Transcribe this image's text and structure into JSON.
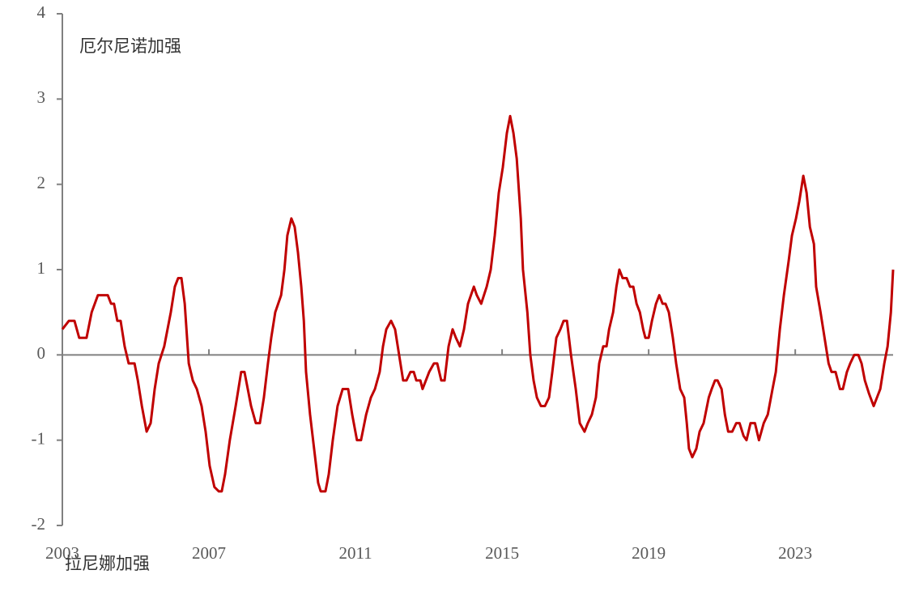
{
  "chart_data": {
    "type": "line",
    "annotations": [
      "厄尔尼诺加强",
      "拉尼娜加强"
    ],
    "color": "#c00000",
    "xlim": [
      2003,
      2025.67
    ],
    "xticks": [
      2003,
      2007,
      2011,
      2015,
      2019,
      2023
    ],
    "ylim": [
      -2,
      4
    ],
    "yticks": [
      -2,
      -1,
      0,
      1,
      2,
      3,
      4
    ],
    "x": [
      2003.0,
      2003.18,
      2003.33,
      2003.46,
      2003.66,
      2003.8,
      2003.97,
      2004.24,
      2004.33,
      2004.41,
      2004.5,
      2004.59,
      2004.7,
      2004.81,
      2004.97,
      2005.06,
      2005.17,
      2005.3,
      2005.41,
      2005.52,
      2005.63,
      2005.78,
      2005.96,
      2006.07,
      2006.16,
      2006.25,
      2006.34,
      2006.45,
      2006.56,
      2006.67,
      2006.8,
      2006.91,
      2007.02,
      2007.15,
      2007.27,
      2007.35,
      2007.44,
      2007.57,
      2007.73,
      2007.88,
      2007.97,
      2008.15,
      2008.28,
      2008.39,
      2008.5,
      2008.61,
      2008.7,
      2008.81,
      2008.97,
      2009.06,
      2009.14,
      2009.25,
      2009.34,
      2009.43,
      2009.52,
      2009.59,
      2009.65,
      2009.76,
      2009.87,
      2009.98,
      2010.05,
      2010.18,
      2010.27,
      2010.38,
      2010.51,
      2010.65,
      2010.8,
      2010.91,
      2011.04,
      2011.15,
      2011.29,
      2011.42,
      2011.53,
      2011.66,
      2011.75,
      2011.84,
      2011.97,
      2012.08,
      2012.19,
      2012.3,
      2012.39,
      2012.5,
      2012.59,
      2012.66,
      2012.77,
      2012.83,
      2012.92,
      2013.01,
      2013.14,
      2013.23,
      2013.34,
      2013.43,
      2013.54,
      2013.65,
      2013.74,
      2013.85,
      2013.96,
      2014.07,
      2014.23,
      2014.31,
      2014.43,
      2014.58,
      2014.69,
      2014.8,
      2014.91,
      2015.02,
      2015.13,
      2015.22,
      2015.31,
      2015.4,
      2015.51,
      2015.57,
      2015.69,
      2015.77,
      2015.86,
      2015.95,
      2016.06,
      2016.17,
      2016.28,
      2016.37,
      2016.48,
      2016.59,
      2016.68,
      2016.77,
      2016.88,
      2017.01,
      2017.12,
      2017.25,
      2017.34,
      2017.45,
      2017.56,
      2017.65,
      2017.76,
      2017.85,
      2017.92,
      2018.03,
      2018.12,
      2018.2,
      2018.29,
      2018.4,
      2018.49,
      2018.58,
      2018.67,
      2018.76,
      2018.85,
      2018.91,
      2019.0,
      2019.09,
      2019.2,
      2019.29,
      2019.38,
      2019.46,
      2019.55,
      2019.66,
      2019.75,
      2019.86,
      2019.97,
      2020.04,
      2020.1,
      2020.19,
      2020.3,
      2020.39,
      2020.5,
      2020.64,
      2020.72,
      2020.81,
      2020.88,
      2020.99,
      2021.08,
      2021.17,
      2021.28,
      2021.39,
      2021.48,
      2021.59,
      2021.67,
      2021.78,
      2021.9,
      2022.01,
      2022.14,
      2022.25,
      2022.38,
      2022.47,
      2022.58,
      2022.69,
      2022.82,
      2022.91,
      2023.02,
      2023.11,
      2023.22,
      2023.31,
      2023.4,
      2023.51,
      2023.57,
      2023.69,
      2023.8,
      2023.91,
      2023.99,
      2024.1,
      2024.22,
      2024.3,
      2024.41,
      2024.5,
      2024.61,
      2024.72,
      2024.81,
      2024.9,
      2025.01,
      2025.14,
      2025.23,
      2025.32,
      2025.43,
      2025.52,
      2025.61,
      2025.67
    ],
    "values": [
      0.3,
      0.4,
      0.4,
      0.2,
      0.2,
      0.5,
      0.7,
      0.7,
      0.6,
      0.6,
      0.4,
      0.4,
      0.1,
      -0.1,
      -0.1,
      -0.3,
      -0.6,
      -0.9,
      -0.8,
      -0.4,
      -0.1,
      0.1,
      0.5,
      0.8,
      0.9,
      0.9,
      0.6,
      -0.1,
      -0.3,
      -0.4,
      -0.6,
      -0.9,
      -1.3,
      -1.55,
      -1.6,
      -1.6,
      -1.4,
      -1.0,
      -0.6,
      -0.2,
      -0.2,
      -0.6,
      -0.8,
      -0.8,
      -0.5,
      -0.1,
      0.2,
      0.5,
      0.7,
      1.0,
      1.4,
      1.6,
      1.5,
      1.2,
      0.8,
      0.4,
      -0.2,
      -0.7,
      -1.1,
      -1.5,
      -1.6,
      -1.6,
      -1.4,
      -1.0,
      -0.6,
      -0.4,
      -0.4,
      -0.7,
      -1.0,
      -1.0,
      -0.7,
      -0.5,
      -0.4,
      -0.2,
      0.1,
      0.3,
      0.4,
      0.3,
      0.0,
      -0.3,
      -0.3,
      -0.2,
      -0.2,
      -0.3,
      -0.3,
      -0.4,
      -0.3,
      -0.2,
      -0.1,
      -0.1,
      -0.3,
      -0.3,
      0.1,
      0.3,
      0.2,
      0.1,
      0.3,
      0.6,
      0.8,
      0.7,
      0.6,
      0.8,
      1.0,
      1.4,
      1.9,
      2.2,
      2.6,
      2.8,
      2.6,
      2.3,
      1.6,
      1.0,
      0.5,
      0.0,
      -0.3,
      -0.5,
      -0.6,
      -0.6,
      -0.5,
      -0.2,
      0.2,
      0.3,
      0.4,
      0.4,
      0.0,
      -0.4,
      -0.8,
      -0.9,
      -0.8,
      -0.7,
      -0.5,
      -0.1,
      0.1,
      0.1,
      0.3,
      0.5,
      0.8,
      1.0,
      0.9,
      0.9,
      0.8,
      0.8,
      0.6,
      0.5,
      0.3,
      0.2,
      0.2,
      0.4,
      0.6,
      0.7,
      0.6,
      0.6,
      0.5,
      0.2,
      -0.1,
      -0.4,
      -0.5,
      -0.8,
      -1.1,
      -1.2,
      -1.1,
      -0.9,
      -0.8,
      -0.5,
      -0.4,
      -0.3,
      -0.3,
      -0.4,
      -0.7,
      -0.9,
      -0.9,
      -0.8,
      -0.8,
      -0.95,
      -1.0,
      -0.8,
      -0.8,
      -1.0,
      -0.8,
      -0.7,
      -0.4,
      -0.2,
      0.3,
      0.7,
      1.1,
      1.4,
      1.6,
      1.8,
      2.1,
      1.9,
      1.5,
      1.3,
      0.8,
      0.5,
      0.2,
      -0.1,
      -0.2,
      -0.2,
      -0.4,
      -0.4,
      -0.2,
      -0.1,
      0.0,
      0.0,
      -0.1,
      -0.3,
      -0.45,
      -0.6,
      -0.5,
      -0.4,
      -0.1,
      0.1,
      0.5,
      1.0
    ]
  }
}
